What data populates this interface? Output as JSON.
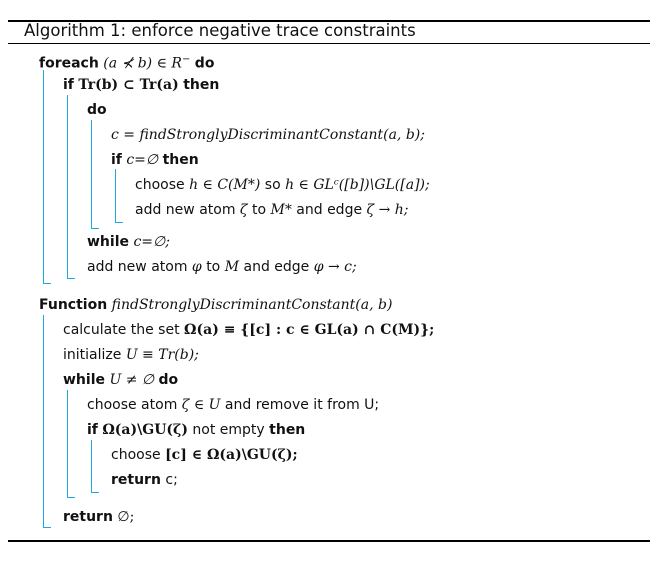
{
  "caption": {
    "label": "Algorithm 1:",
    "text": "enforce negative trace constraints"
  },
  "lines": {
    "l1_kw": "foreach",
    "l1_math": "(a ⊀ b) ∈ R",
    "l1_sup": "−",
    "l1_do": "do",
    "l2_kw": "if",
    "l2_math": "Tr(b) ⊂ Tr(a)",
    "l2_then": "then",
    "l3_kw": "do",
    "l4_math": "c = findStronglyDiscriminantConstant(a, b);",
    "l5_kw": "if",
    "l5_math": "c=∅",
    "l5_then": "then",
    "l6_text_a": "choose",
    "l6_math_a": "h ∈ C(M*)",
    "l6_text_b": "so",
    "l6_math_b": "h ∈ GLᶜ([b])\\GL([a]);",
    "l7_text_a": "add new atom",
    "l7_math_a": "ζ",
    "l7_text_b": "to",
    "l7_math_b": "M*",
    "l7_text_c": "and edge",
    "l7_math_c": "ζ → h;",
    "l8_kw": "while",
    "l8_math": "c=∅;",
    "l9_text_a": "add new atom",
    "l9_math_a": "φ",
    "l9_text_b": "to",
    "l9_math_b": "M",
    "l9_text_c": "and edge",
    "l9_math_c": "φ → c;",
    "f_kw": "Function",
    "f_name": "findStronglyDiscriminantConstant(a, b)",
    "f1_text": "calculate the set",
    "f1_math": "Ω(a) ≡ {[c] : c ∈ GL(a) ∩ C(M)};",
    "f2_text": "initialize",
    "f2_math": "U ≡ Tr(b);",
    "f3_kw": "while",
    "f3_math": "U ≠ ∅",
    "f3_do": "do",
    "f4_text_a": "choose atom",
    "f4_math": "ζ ∈ U",
    "f4_text_b": "and remove it from U;",
    "f5_kw": "if",
    "f5_math": "Ω(a)\\GU(ζ)",
    "f5_text": "not empty",
    "f5_then": "then",
    "f6_text": "choose",
    "f6_math": "[c] ∈ Ω(a)\\GU(ζ);",
    "f7_kw": "return",
    "f7_text": "c;",
    "f8_kw": "return",
    "f8_math": "∅;"
  },
  "colors": {
    "block_bar": "#1ea8e0",
    "text": "#111111",
    "rule": "#000000"
  }
}
